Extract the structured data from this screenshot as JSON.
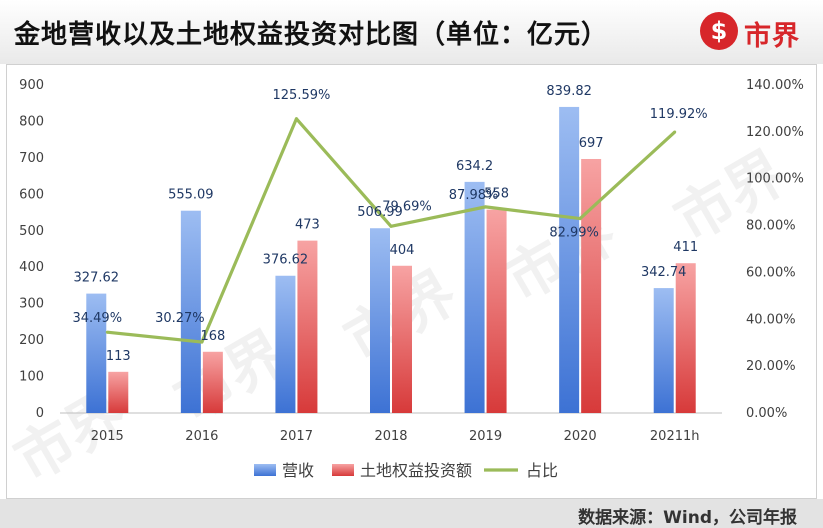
{
  "header": {
    "title": "金地营收以及土地权益投资对比图（单位：亿元）",
    "logo_symbol": "$",
    "logo_text": "市界"
  },
  "footer": {
    "source": "数据来源：Wind，公司年报"
  },
  "watermark": "市界",
  "colors": {
    "revenue": "#5b8fe0",
    "land": "#e86a6a",
    "ratio": "#9bbb59",
    "brand": "#d7262a"
  },
  "chart_data": {
    "type": "bar",
    "categories": [
      "2015",
      "2016",
      "2017",
      "2018",
      "2019",
      "2020",
      "20211h"
    ],
    "series": [
      {
        "name": "营收",
        "type": "bar",
        "axis": "left",
        "values": [
          327.62,
          555.09,
          376.62,
          506.99,
          634.2,
          839.82,
          342.74
        ],
        "labels": [
          "327.62",
          "555.09",
          "376.62",
          "506.99",
          "634.2",
          "839.82",
          "342.74"
        ]
      },
      {
        "name": "土地权益投资额",
        "type": "bar",
        "axis": "left",
        "values": [
          113,
          168,
          473,
          404,
          558,
          697,
          411
        ],
        "labels": [
          "113",
          "168",
          "473",
          "404",
          "558",
          "697",
          "411"
        ]
      },
      {
        "name": "占比",
        "type": "line",
        "axis": "right",
        "values": [
          34.49,
          30.27,
          125.59,
          79.69,
          87.98,
          82.99,
          119.92
        ],
        "labels": [
          "34.49%",
          "30.27%",
          "125.59%",
          "79.69%",
          "87.98%",
          "82.99%",
          "119.92%"
        ]
      }
    ],
    "y_left": {
      "min": 0,
      "max": 900,
      "ticks": [
        "0",
        "100",
        "200",
        "300",
        "400",
        "500",
        "600",
        "700",
        "800",
        "900"
      ]
    },
    "y_right": {
      "min": 0,
      "max": 140,
      "ticks": [
        "0.00%",
        "20.00%",
        "40.00%",
        "60.00%",
        "80.00%",
        "100.00%",
        "120.00%",
        "140.00%"
      ]
    },
    "legend_position": "bottom",
    "grid": false
  }
}
